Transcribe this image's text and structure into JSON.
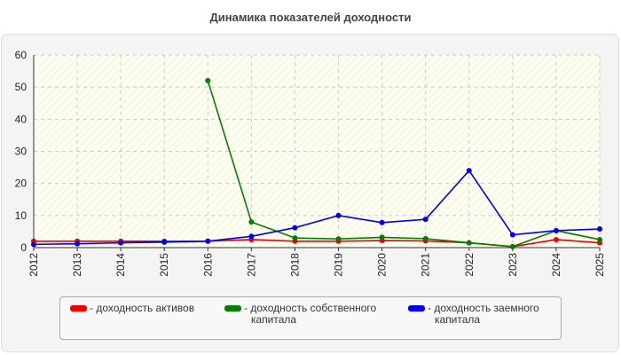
{
  "chart_data": {
    "type": "line",
    "title": "Динамика показателей доходности",
    "xlabel": "",
    "ylabel": "",
    "x": [
      "2012",
      "2013",
      "2014",
      "2015",
      "2016",
      "2017",
      "2018",
      "2019",
      "2020",
      "2021",
      "2022",
      "2023",
      "2024",
      "2025"
    ],
    "ylim": [
      0,
      60
    ],
    "yticks": [
      0,
      10,
      20,
      30,
      40,
      50,
      60
    ],
    "grid": true,
    "legend_position": "bottom",
    "series": [
      {
        "name": "- доходность активов",
        "color": "#ee0000",
        "values": [
          2.0,
          2.0,
          2.0,
          2.0,
          2.0,
          2.5,
          2.0,
          2.0,
          2.2,
          2.1,
          1.5,
          0.3,
          2.5,
          1.5
        ]
      },
      {
        "name": "- доходность собственного капитала",
        "color": "#008000",
        "values": [
          null,
          null,
          null,
          null,
          52.0,
          8.0,
          3.0,
          2.7,
          3.2,
          2.8,
          1.5,
          0.3,
          5.3,
          2.5
        ]
      },
      {
        "name": "- доходность заемного капитала",
        "color": "#0000ee",
        "values": [
          1.0,
          1.2,
          1.5,
          1.7,
          2.0,
          3.5,
          6.2,
          10.0,
          7.8,
          8.8,
          24.0,
          4.0,
          5.3,
          5.8
        ]
      }
    ]
  },
  "legend": {
    "items": [
      {
        "line1": "- доходность активов",
        "line2": "",
        "color": "#ee0000"
      },
      {
        "line1": "- доходность собственного",
        "line2": "капитала",
        "color": "#008000"
      },
      {
        "line1": "- доходность заемного",
        "line2": "капитала",
        "color": "#0000ee"
      }
    ]
  }
}
